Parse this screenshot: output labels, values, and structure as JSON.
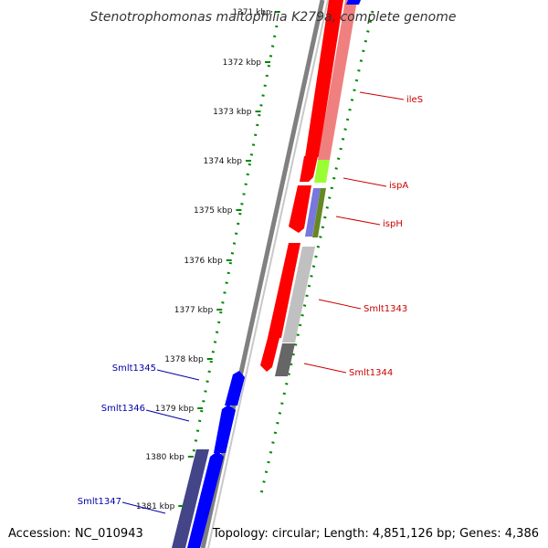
{
  "title": "Stenotrophomonas maltophilia K279a, complete genome",
  "footer": {
    "accession": "Accession: NC_010943",
    "summary": "Topology: circular; Length: 4,851,126 bp; Genes: 4,386"
  },
  "ticks": [
    {
      "label": "1371 kbp",
      "kbp": 1371
    },
    {
      "label": "1372 kbp",
      "kbp": 1372
    },
    {
      "label": "1373 kbp",
      "kbp": 1373
    },
    {
      "label": "1374 kbp",
      "kbp": 1374
    },
    {
      "label": "1375 kbp",
      "kbp": 1375
    },
    {
      "label": "1376 kbp",
      "kbp": 1376
    },
    {
      "label": "1377 kbp",
      "kbp": 1377
    },
    {
      "label": "1378 kbp",
      "kbp": 1378
    },
    {
      "label": "1379 kbp",
      "kbp": 1379
    },
    {
      "label": "1380 kbp",
      "kbp": 1380
    },
    {
      "label": "1381 kbp",
      "kbp": 1381
    }
  ],
  "labels_right": [
    {
      "text": "ileS",
      "color": "#cc0000"
    },
    {
      "text": "ispA",
      "color": "#cc0000"
    },
    {
      "text": "ispH",
      "color": "#cc0000"
    },
    {
      "text": "Smlt1343",
      "color": "#cc0000"
    },
    {
      "text": "Smlt1344",
      "color": "#cc0000"
    }
  ],
  "labels_left": [
    {
      "text": "Smlt1345",
      "color": "#0000aa"
    },
    {
      "text": "Smlt1346",
      "color": "#0000aa"
    },
    {
      "text": "Smlt1347",
      "color": "#0000aa"
    }
  ],
  "colors": {
    "forward_cds": "#ff0000",
    "reverse_cds": "#0000ff",
    "backbone": "#808080",
    "ruler": "#008800",
    "ileS_feature": "#f08080",
    "ispA_feature": "#99ff33",
    "ispH_feature_a": "#7777dd",
    "ispH_feature_b": "#668822",
    "smlt1343_feature": "#c0c0c0",
    "smlt1344_feature": "#666666",
    "reverse_feature": "#444488"
  }
}
